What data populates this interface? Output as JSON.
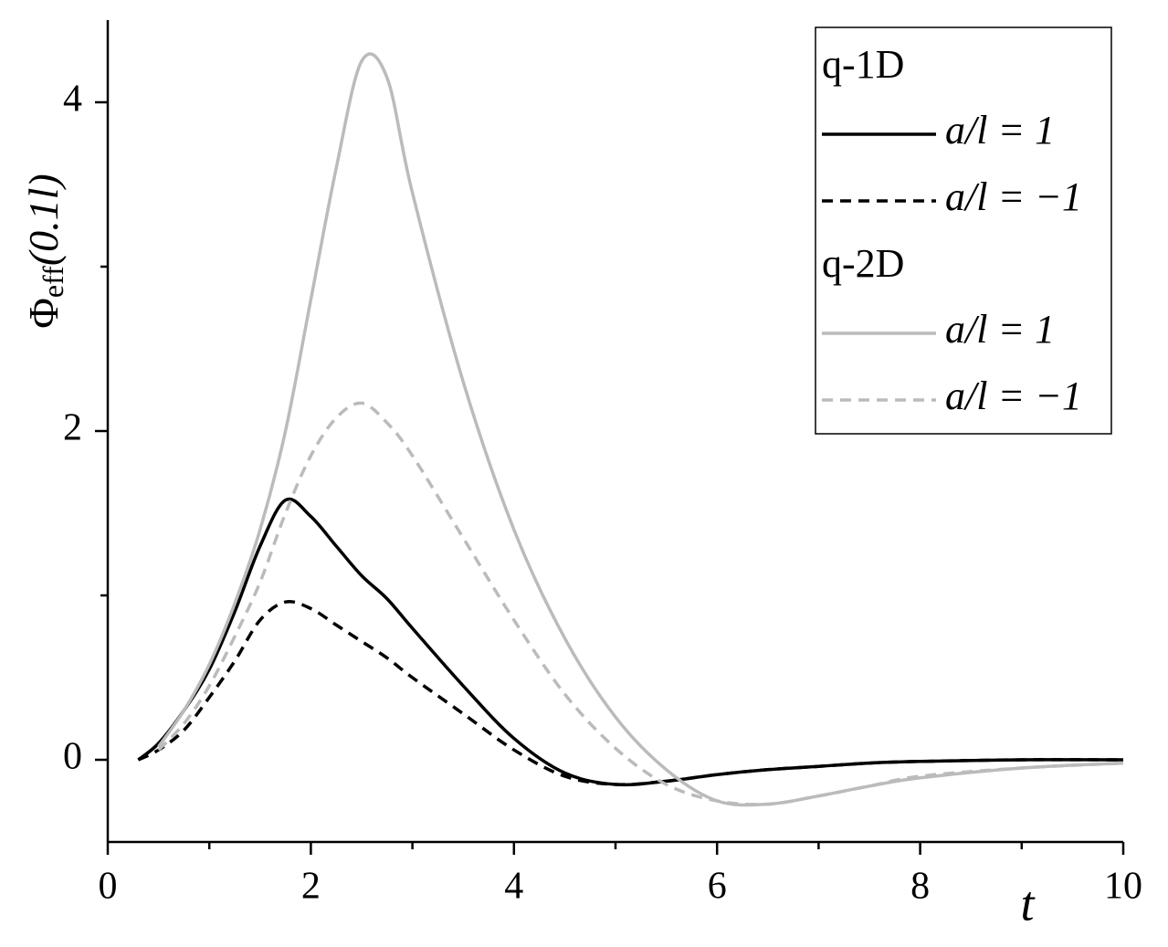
{
  "chart_data": {
    "type": "line",
    "xlabel": "t",
    "ylabel": {
      "symbol": "Φ",
      "sub": "eff",
      "arg": "(0.1l)"
    },
    "x": [
      0.3,
      0.5,
      0.75,
      1,
      1.25,
      1.5,
      1.75,
      2,
      2.25,
      2.5,
      2.75,
      3,
      3.5,
      4,
      4.5,
      5,
      5.5,
      6,
      6.5,
      7,
      7.5,
      8,
      9,
      10
    ],
    "xlim": [
      0,
      10
    ],
    "xticks": [
      0,
      2,
      4,
      6,
      8,
      10
    ],
    "xminorticks": [
      1,
      3,
      5,
      7,
      9
    ],
    "ylim": [
      -0.5,
      4.5
    ],
    "yticks": [
      0,
      2,
      4
    ],
    "yminorticks": [
      1,
      3
    ],
    "legend_position": "upper right",
    "legend_groups": [
      "q-1D",
      "q-2D"
    ],
    "series": [
      {
        "name": "a/l = 1",
        "group": 0,
        "color": "#000000",
        "dash": false,
        "values": [
          0,
          0.1,
          0.3,
          0.55,
          0.9,
          1.3,
          1.58,
          1.48,
          1.3,
          1.12,
          0.98,
          0.8,
          0.45,
          0.13,
          -0.08,
          -0.15,
          -0.13,
          -0.09,
          -0.06,
          -0.04,
          -0.02,
          -0.01,
          0,
          0
        ]
      },
      {
        "name": "a/l = −1",
        "group": 0,
        "color": "#000000",
        "dash": true,
        "values": [
          0,
          0.06,
          0.18,
          0.38,
          0.6,
          0.85,
          0.96,
          0.92,
          0.82,
          0.72,
          0.62,
          0.5,
          0.28,
          0.06,
          -0.1,
          -0.15,
          -0.13,
          -0.09,
          -0.06,
          -0.04,
          -0.02,
          -0.01,
          0,
          0
        ]
      },
      {
        "name": "a/l = 1",
        "group": 1,
        "color": "#bbbbbb",
        "dash": false,
        "values": [
          null,
          0.08,
          0.3,
          0.58,
          0.95,
          1.4,
          2.0,
          2.8,
          3.6,
          4.25,
          4.15,
          3.45,
          2.3,
          1.4,
          0.74,
          0.26,
          -0.06,
          -0.25,
          -0.27,
          -0.22,
          -0.16,
          -0.11,
          -0.05,
          -0.02
        ]
      },
      {
        "name": "a/l = −1",
        "group": 1,
        "color": "#bbbbbb",
        "dash": true,
        "values": [
          null,
          0.06,
          0.22,
          0.45,
          0.75,
          1.08,
          1.5,
          1.85,
          2.08,
          2.17,
          2.05,
          1.85,
          1.35,
          0.85,
          0.4,
          0.07,
          -0.15,
          -0.25,
          -0.27,
          -0.22,
          -0.16,
          -0.1,
          -0.05,
          -0.02
        ]
      }
    ]
  }
}
